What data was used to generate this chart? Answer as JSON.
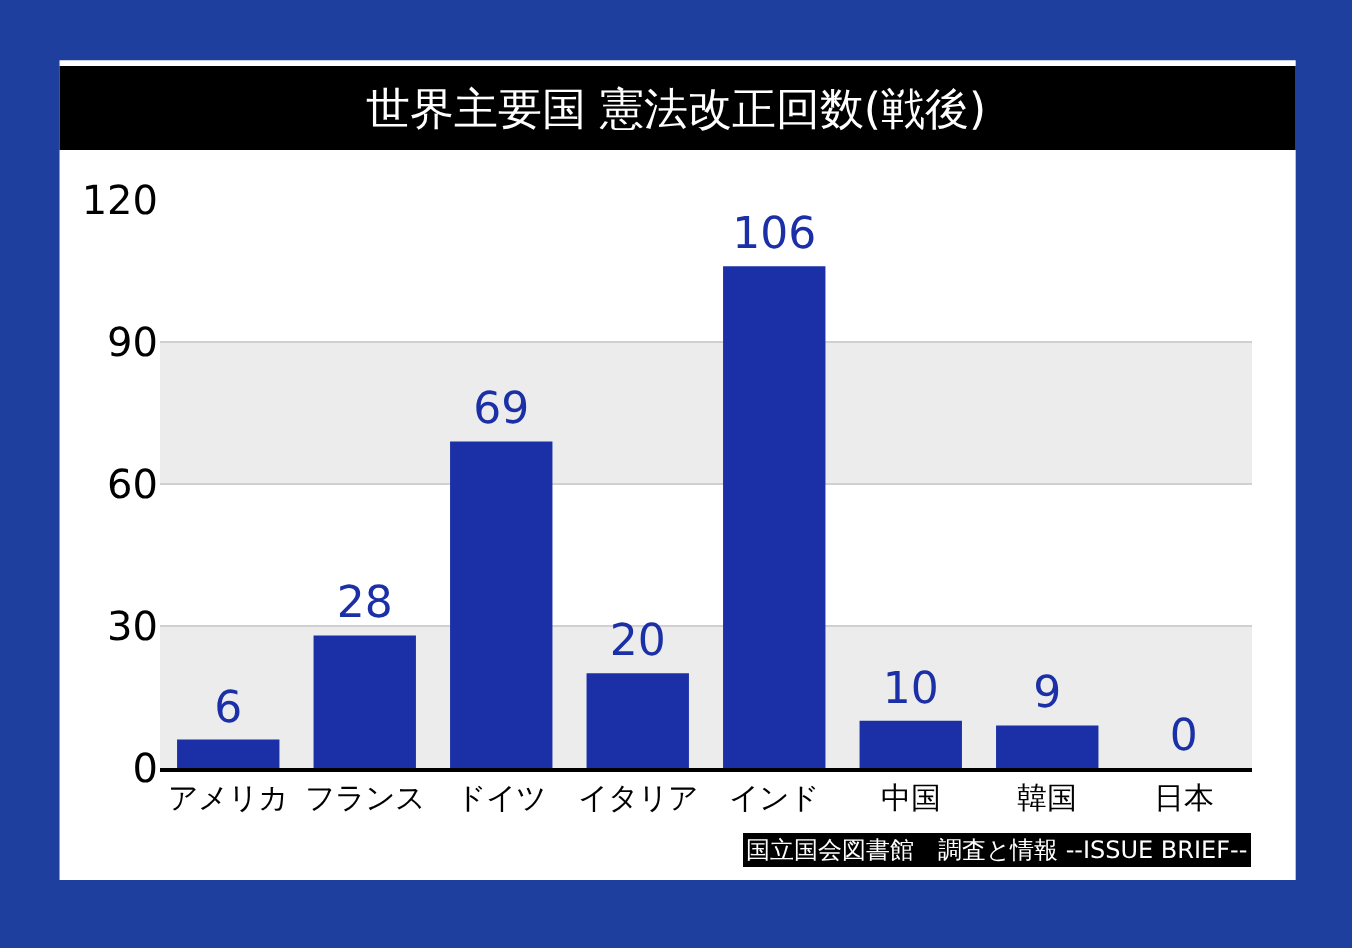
{
  "chart_data": {
    "type": "bar",
    "title": "世界主要国 憲法改正回数(戦後)",
    "categories": [
      "アメリカ",
      "フランス",
      "ドイツ",
      "イタリア",
      "インド",
      "中国",
      "韓国",
      "日本"
    ],
    "values": [
      6,
      28,
      69,
      20,
      106,
      10,
      9,
      0
    ],
    "color": "#1b2fa6",
    "data_labels": true,
    "ylim": [
      0,
      120
    ],
    "yticks": [
      0,
      30,
      60,
      90,
      120
    ],
    "grid": "y",
    "bands": [
      {
        "axis": "y",
        "from": 0,
        "to": 30,
        "color": "#ececec"
      },
      {
        "axis": "y",
        "from": 60,
        "to": 90,
        "color": "#ececec"
      }
    ],
    "annotations": [
      "国立国会図書館　調査と情報 --ISSUE BRIEF--"
    ]
  }
}
